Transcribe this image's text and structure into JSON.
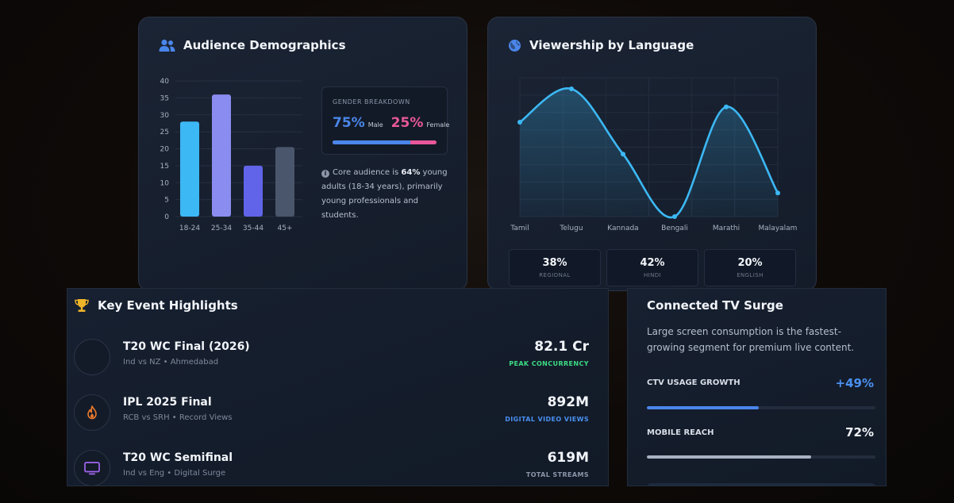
{
  "demographics": {
    "title": "Audience Demographics",
    "icon": "users-icon",
    "chart_data": {
      "type": "bar",
      "title": "Audience Demographics",
      "categories": [
        "18-24",
        "25-34",
        "35-44",
        "45+"
      ],
      "values": [
        28,
        36,
        15,
        20.5
      ],
      "colors": [
        "#3cb8f4",
        "#8a8cf0",
        "#6164e8",
        "#4a566b"
      ],
      "ylim": [
        0,
        40
      ],
      "yticks": [
        "0",
        "5",
        "10",
        "15",
        "20",
        "25",
        "30",
        "35",
        "40"
      ],
      "grid": true
    },
    "gender": {
      "label": "GENDER BREAKDOWN",
      "male_pct": "75%",
      "male_label": "Male",
      "female_pct": "25%",
      "female_label": "Female",
      "male_fraction": 0.75,
      "male_color": "#4a86ea",
      "female_color": "#e8579a"
    },
    "note_prefix": "Core audience is ",
    "note_bold": "64%",
    "note_suffix": " young adults (18-34 years), primarily young professionals and students."
  },
  "language": {
    "title": "Viewership by Language",
    "icon": "globe-icon",
    "chart_data": {
      "type": "area",
      "title": "Viewership by Language",
      "categories": [
        "Tamil",
        "Telugu",
        "Kannada",
        "Bengali",
        "Marathi",
        "Malayalam"
      ],
      "values": [
        68,
        92,
        45,
        0,
        79,
        17
      ],
      "ylim": [
        0,
        100
      ],
      "color": "#3cb8f4",
      "grid": true
    },
    "stats": [
      {
        "value": "38%",
        "label": "REGIONAL"
      },
      {
        "value": "42%",
        "label": "HINDI"
      },
      {
        "value": "20%",
        "label": "ENGLISH"
      }
    ]
  },
  "events": {
    "title": "Key Event Highlights",
    "icon": "trophy-icon",
    "items": [
      {
        "title": "T20 WC Final (2026)",
        "subtitle": "Ind vs NZ • Ahmedabad",
        "value": "82.1 Cr",
        "tag": "PEAK CONCURRENCY",
        "tag_color": "#3ddc84",
        "icon": "blank-icon"
      },
      {
        "title": "IPL 2025 Final",
        "subtitle": "RCB vs SRH • Record Views",
        "value": "892M",
        "tag": "DIGITAL VIDEO VIEWS",
        "tag_color": "#4a90f0",
        "icon": "fire-icon"
      },
      {
        "title": "T20 WC Semifinal",
        "subtitle": "Ind vs Eng • Digital Surge",
        "value": "619M",
        "tag": "TOTAL STREAMS",
        "tag_color": "#8a96a8",
        "icon": "tv-icon"
      }
    ]
  },
  "ctv": {
    "title": "Connected TV Surge",
    "description": "Large screen consumption is the fastest-growing segment for premium live content.",
    "metrics": [
      {
        "label": "CTV USAGE GROWTH",
        "value": "+49%",
        "fraction": 0.49,
        "color": "#4a86ea",
        "value_color": "#4a90f0"
      },
      {
        "label": "MOBILE REACH",
        "value": "72%",
        "fraction": 0.72,
        "color": "#a8b2c2",
        "value_color": "#f2f5fa"
      }
    ]
  }
}
